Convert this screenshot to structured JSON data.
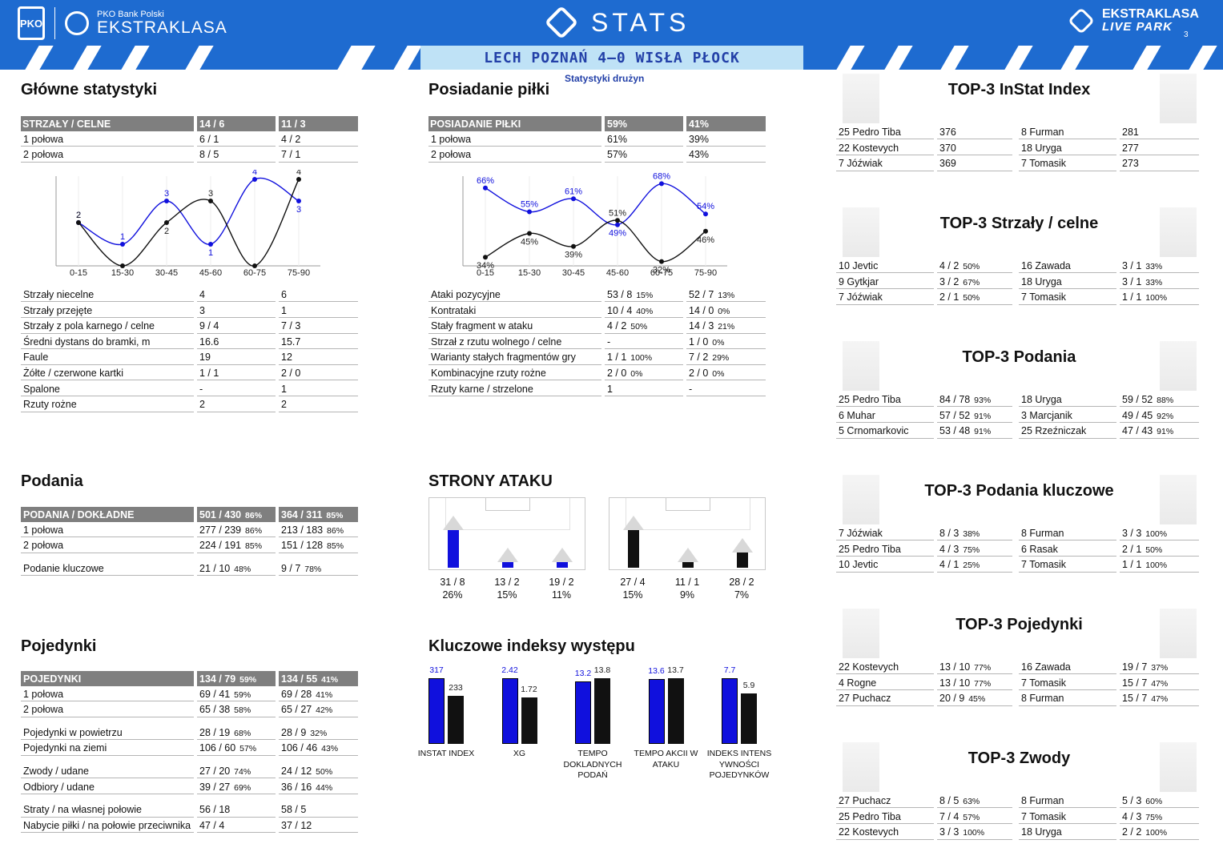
{
  "header": {
    "bank": "PKO Bank Polski",
    "league": "EKSTRAKLASA",
    "pko": "PKO",
    "stats": "STATS",
    "live1": "EKSTRAKLASA",
    "live2": "LIVE PARK",
    "page": "3",
    "match": "LECH POZNAŃ 4–0 WISŁA PŁOCK",
    "subtitle": "Statystyki drużyn"
  },
  "colors": {
    "home": "#1010dd",
    "away": "#111111",
    "brand": "#1e6bd0",
    "band_mid": "#bfe2f6"
  },
  "main": {
    "title": "Główne statystyki",
    "head": [
      "STRZAŁY / CELNE",
      "14 / 6",
      "11 / 3"
    ],
    "rows_top": [
      [
        "1 połowa",
        "6 / 1",
        "4 / 2"
      ],
      [
        "2 połowa",
        "8 / 5",
        "7 / 1"
      ]
    ],
    "rows": [
      [
        "Strzały niecelne",
        "4",
        "6",
        true
      ],
      [
        "Strzały przejęte",
        "3",
        "1",
        true
      ],
      [
        "Strzały z pola karnego / celne",
        "9 / 4",
        "7 / 3",
        true
      ],
      [
        "Średni dystans do bramki, m",
        "16.6",
        "15.7",
        true
      ],
      [
        "Faule",
        "19",
        "12",
        false
      ],
      [
        "Żółte / czerwone kartki",
        "1 / 1",
        "2 / 0",
        false
      ],
      [
        "Spalone",
        "-",
        "1",
        false
      ],
      [
        "Rzuty rożne",
        "2",
        "2",
        false
      ]
    ]
  },
  "poss": {
    "title": "Posiadanie piłki",
    "head": [
      "POSIADANIE PIŁKI",
      "59%",
      "41%"
    ],
    "rows_top": [
      [
        "1 połowa",
        "61%",
        "39%"
      ],
      [
        "2 połowa",
        "57%",
        "43%"
      ]
    ],
    "rows": [
      [
        "Ataki pozycyjne",
        "53 / 8",
        "15%",
        "52 / 7",
        "13%",
        false
      ],
      [
        "Kontrataki",
        "10 / 4",
        "40%",
        "14 / 0",
        "0%",
        false
      ],
      [
        "Stały fragment w ataku",
        "4 / 2",
        "50%",
        "14 / 3",
        "21%",
        false
      ],
      [
        "Strzał z rzutu wolnego / celne",
        "-",
        "",
        "1 / 0",
        "0%",
        true
      ],
      [
        "Warianty stałych fragmentów gry",
        "1 / 1",
        "100%",
        "7 / 2",
        "29%",
        true
      ],
      [
        "Kombinacyjne rzuty rożne",
        "2 / 0",
        "0%",
        "2 / 0",
        "0%",
        true
      ],
      [
        "Rzuty karne / strzelone",
        "1",
        "",
        "-",
        "",
        true
      ]
    ]
  },
  "pass": {
    "title": "Podania",
    "head": [
      "PODANIA / DOKŁADNE",
      "501 / 430",
      "86%",
      "364 / 311",
      "85%"
    ],
    "rows": [
      [
        "1 połowa",
        "277 / 239",
        "86%",
        "213 / 183",
        "86%"
      ],
      [
        "2 połowa",
        "224 / 191",
        "85%",
        "151 / 128",
        "85%"
      ],
      [
        "Podanie kluczowe",
        "21 / 10",
        "48%",
        "9 / 7",
        "78%"
      ]
    ]
  },
  "duel": {
    "title": "Pojedynki",
    "head": [
      "POJEDYNKI",
      "134 / 79",
      "59%",
      "134 / 55",
      "41%"
    ],
    "rows": [
      [
        "1 połowa",
        "69 / 41",
        "59%",
        "69 / 28",
        "41%",
        true,
        0
      ],
      [
        "2 połowa",
        "65 / 38",
        "58%",
        "65 / 27",
        "42%",
        true,
        0
      ],
      [
        "Pojedynki w powietrzu",
        "28 / 19",
        "68%",
        "28 / 9",
        "32%",
        true,
        9
      ],
      [
        "Pojedynki na ziemi",
        "106 / 60",
        "57%",
        "106 / 46",
        "43%",
        true,
        0
      ],
      [
        "Zwody / udane",
        "27 / 20",
        "74%",
        "24 / 12",
        "50%",
        false,
        9
      ],
      [
        "Odbiory / udane",
        "39 / 27",
        "69%",
        "36 / 16",
        "44%",
        false,
        0
      ],
      [
        "Straty / na własnej połowie",
        "56 / 18",
        "",
        "58 / 5",
        "",
        false,
        9
      ],
      [
        "Nabycie piłki / na połowie przeciwnika",
        "47 / 4",
        "",
        "37 / 12",
        "",
        false,
        0
      ]
    ]
  },
  "sides": {
    "title": "STRONY ATAKU",
    "home": [
      {
        "val": "31 / 8",
        "pct": "26%",
        "frac": 0.6
      },
      {
        "val": "13 / 2",
        "pct": "15%",
        "frac": 0.1
      },
      {
        "val": "19 / 2",
        "pct": "11%",
        "frac": 0.1
      }
    ],
    "away": [
      {
        "val": "27 / 4",
        "pct": "15%",
        "frac": 0.6
      },
      {
        "val": "11 / 1",
        "pct": "9%",
        "frac": 0.1
      },
      {
        "val": "28 / 2",
        "pct": "7%",
        "frac": 0.25
      }
    ]
  },
  "keyidx": {
    "title": "Kluczowe indeksy występu",
    "items": [
      {
        "label": "INSTAT INDEX",
        "home": "317",
        "away": "233",
        "hv": 317,
        "av": 233,
        "max": 317
      },
      {
        "label": "XG",
        "home": "2.42",
        "away": "1.72",
        "hv": 2.42,
        "av": 1.72,
        "max": 2.42
      },
      {
        "label": "TEMPO DOKLADNYCH PODAŃ",
        "home": "13.2",
        "away": "13.8",
        "hv": 13.2,
        "av": 13.8,
        "max": 13.8
      },
      {
        "label": "TEMPO AKCII W ATAKU",
        "home": "13.6",
        "away": "13.7",
        "hv": 13.6,
        "av": 13.7,
        "max": 13.7
      },
      {
        "label": "INDEKS INTENS YWNOŚCI POJEDYNKÓW",
        "home": "7.7",
        "away": "5.9",
        "hv": 7.7,
        "av": 5.9,
        "max": 7.7
      }
    ]
  },
  "chart_data": [
    {
      "type": "line",
      "title": "",
      "categories": [
        "0-15",
        "15-30",
        "30-45",
        "45-60",
        "60-75",
        "75-90"
      ],
      "series": [
        {
          "color": "#1010dd",
          "values": [
            2,
            1,
            3,
            1,
            4,
            3
          ]
        },
        {
          "color": "#111111",
          "values": [
            2,
            0,
            2,
            3,
            0,
            4
          ]
        }
      ],
      "ylim": [
        0,
        4
      ],
      "data_labels": [
        [
          "2",
          "1",
          "3",
          "1",
          "4",
          "3"
        ],
        [
          "2",
          "",
          "2",
          "3",
          "",
          "4"
        ]
      ]
    },
    {
      "type": "line",
      "title": "",
      "categories": [
        "0-15",
        "15-30",
        "30-45",
        "45-60",
        "60-75",
        "75-90"
      ],
      "series": [
        {
          "color": "#1010dd",
          "values": [
            66,
            55,
            61,
            49,
            68,
            54
          ]
        },
        {
          "color": "#111111",
          "values": [
            34,
            45,
            39,
            51,
            32,
            46
          ]
        }
      ],
      "ylim": [
        30,
        70
      ],
      "data_labels": [
        [
          "66%",
          "55%",
          "61%",
          "49%",
          "68%",
          "54%"
        ],
        [
          "34%",
          "45%",
          "39%",
          "51%",
          "32%",
          "46%"
        ]
      ]
    }
  ],
  "top3": [
    {
      "title": "TOP-3 InStat Index",
      "home": [
        [
          "25 Pedro Tiba",
          "376",
          ""
        ],
        [
          "22 Kostevych",
          "370",
          ""
        ],
        [
          "7  Jóźwiak",
          "369",
          ""
        ]
      ],
      "away": [
        [
          "8  Furman",
          "281",
          ""
        ],
        [
          "18 Uryga",
          "277",
          ""
        ],
        [
          "7  Tomasik",
          "273",
          ""
        ]
      ]
    },
    {
      "title": "TOP-3 Strzały / celne",
      "home": [
        [
          "10 Jevtic",
          "4 / 2",
          "50%"
        ],
        [
          "9  Gytkjar",
          "3 / 2",
          "67%"
        ],
        [
          "7  Jóźwiak",
          "2 / 1",
          "50%"
        ]
      ],
      "away": [
        [
          "16 Zawada",
          "3 / 1",
          "33%"
        ],
        [
          "18 Uryga",
          "3 / 1",
          "33%"
        ],
        [
          "7  Tomasik",
          "1 / 1",
          "100%"
        ]
      ]
    },
    {
      "title": "TOP-3 Podania",
      "home": [
        [
          "25 Pedro Tiba",
          "84 / 78",
          "93%"
        ],
        [
          "6  Muhar",
          "57 / 52",
          "91%"
        ],
        [
          "5  Crnomarkovic",
          "53 / 48",
          "91%"
        ]
      ],
      "away": [
        [
          "18 Uryga",
          "59 / 52",
          "88%"
        ],
        [
          "3  Marcjanik",
          "49 / 45",
          "92%"
        ],
        [
          "25 Rzeźniczak",
          "47 / 43",
          "91%"
        ]
      ]
    },
    {
      "title": "TOP-3 Podania kluczowe",
      "home": [
        [
          "7  Jóźwiak",
          "8 / 3",
          "38%"
        ],
        [
          "25 Pedro Tiba",
          "4 / 3",
          "75%"
        ],
        [
          "10 Jevtic",
          "4 / 1",
          "25%"
        ]
      ],
      "away": [
        [
          "8  Furman",
          "3 / 3",
          "100%"
        ],
        [
          "6  Rasak",
          "2 / 1",
          "50%"
        ],
        [
          "7  Tomasik",
          "1 / 1",
          "100%"
        ]
      ]
    },
    {
      "title": "TOP-3 Pojedynki",
      "home": [
        [
          "22 Kostevych",
          "13 / 10",
          "77%"
        ],
        [
          "4  Rogne",
          "13 / 10",
          "77%"
        ],
        [
          "27 Puchacz",
          "20 / 9",
          "45%"
        ]
      ],
      "away": [
        [
          "16 Zawada",
          "19 / 7",
          "37%"
        ],
        [
          "7  Tomasik",
          "15 / 7",
          "47%"
        ],
        [
          "8  Furman",
          "15 / 7",
          "47%"
        ]
      ]
    },
    {
      "title": "TOP-3 Zwody",
      "home": [
        [
          "27 Puchacz",
          "8 / 5",
          "63%"
        ],
        [
          "25 Pedro Tiba",
          "7 / 4",
          "57%"
        ],
        [
          "22 Kostevych",
          "3 / 3",
          "100%"
        ]
      ],
      "away": [
        [
          "8  Furman",
          "5 / 3",
          "60%"
        ],
        [
          "7  Tomasik",
          "4 / 3",
          "75%"
        ],
        [
          "18 Uryga",
          "2 / 2",
          "100%"
        ]
      ]
    }
  ]
}
